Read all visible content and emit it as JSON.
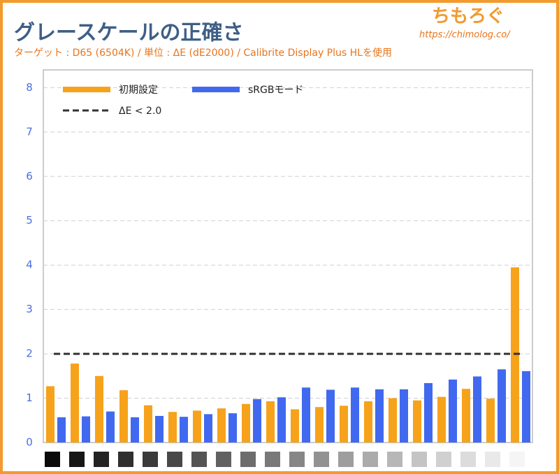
{
  "chart_data": {
    "type": "bar",
    "title": "グレースケールの正確さ",
    "subtitle": "ターゲット : D65 (6504K) / 単位 : ΔE (dE2000) / Calibrite Display Plus HLを使用",
    "brand": "ちもろぐ",
    "url": "https://chimolog.co/",
    "categories": [
      null,
      null,
      null,
      null,
      null,
      null,
      null,
      null,
      null,
      null,
      null,
      null,
      null,
      null,
      null,
      null,
      null,
      null,
      null,
      null
    ],
    "series": [
      {
        "name": "初期設定",
        "color": "#f7a21b",
        "values": [
          1.27,
          1.78,
          1.5,
          1.18,
          0.84,
          0.69,
          0.72,
          0.77,
          0.87,
          0.93,
          0.75,
          0.8,
          0.83,
          0.93,
          1.0,
          0.95,
          1.03,
          1.21,
          0.99,
          3.95
        ]
      },
      {
        "name": "sRGBモード",
        "color": "#4169f0",
        "values": [
          0.57,
          0.59,
          0.7,
          0.57,
          0.6,
          0.58,
          0.64,
          0.66,
          0.98,
          1.02,
          1.24,
          1.19,
          1.24,
          1.2,
          1.2,
          1.34,
          1.42,
          1.49,
          1.65,
          1.61
        ]
      }
    ],
    "reference_line": {
      "name": "ΔE < 2.0",
      "value": 2,
      "color": "#333333"
    },
    "ylim": [
      0,
      8.4
    ],
    "yticks": [
      0,
      1,
      2,
      3,
      4,
      5,
      6,
      7,
      8
    ],
    "grid": true
  }
}
